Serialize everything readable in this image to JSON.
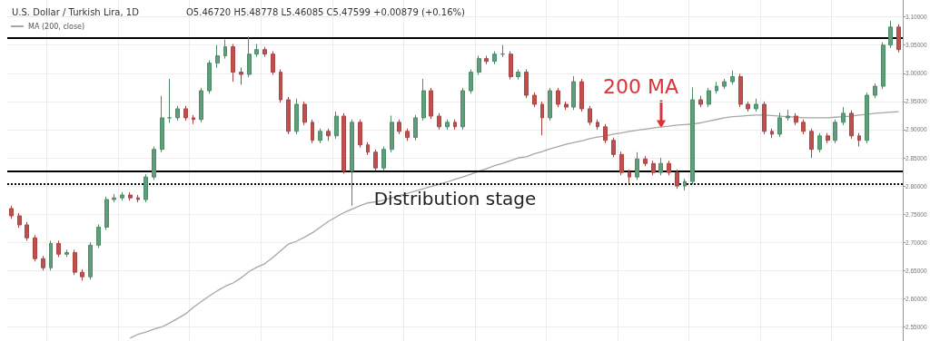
{
  "chart_data": {
    "type": "candlestick",
    "title": "U.S. Dollar / Turkish Lira, 1D",
    "subtitle": "O5.46720 H5.48778 L5.46085 C5.47599 +0.00879 (+0.16%)",
    "categories": [
      null,
      null,
      null,
      null,
      null,
      null,
      null,
      null,
      null,
      null,
      null,
      null,
      null,
      null,
      null,
      null,
      null,
      null,
      null,
      null,
      null,
      null,
      null,
      null,
      null,
      null,
      null,
      null,
      null,
      null,
      null,
      null,
      null,
      null,
      null,
      null,
      null,
      null,
      null,
      null,
      null,
      null,
      null,
      null,
      null,
      null,
      null,
      null,
      null,
      null,
      null,
      null,
      null,
      null,
      null,
      null,
      null,
      null,
      null,
      null,
      null,
      null,
      null,
      null,
      null,
      null,
      null,
      null,
      null,
      null,
      null,
      null,
      null,
      null,
      null,
      null,
      null,
      null,
      null,
      null,
      null,
      null,
      null,
      null,
      null,
      null,
      null,
      null,
      null,
      null,
      null,
      null,
      null,
      null,
      null,
      null,
      null,
      null,
      null,
      null,
      null,
      null,
      null,
      null,
      null,
      null,
      null,
      null,
      null,
      null,
      null,
      null,
      null
    ],
    "ohlc": [
      [
        2.76,
        2.765,
        2.742,
        2.747
      ],
      [
        2.747,
        2.752,
        2.726,
        2.731
      ],
      [
        2.731,
        2.736,
        2.703,
        2.708
      ],
      [
        2.708,
        2.713,
        2.666,
        2.671
      ],
      [
        2.671,
        2.676,
        2.65,
        2.655
      ],
      [
        2.655,
        2.703,
        2.65,
        2.698
      ],
      [
        2.698,
        2.703,
        2.674,
        2.679
      ],
      [
        2.679,
        2.687,
        2.674,
        2.682
      ],
      [
        2.682,
        2.687,
        2.642,
        2.647
      ],
      [
        2.647,
        2.652,
        2.632,
        2.639
      ],
      [
        2.639,
        2.7,
        2.634,
        2.695
      ],
      [
        2.695,
        2.732,
        2.69,
        2.727
      ],
      [
        2.727,
        2.781,
        2.722,
        2.776
      ],
      [
        2.776,
        2.786,
        2.771,
        2.779
      ],
      [
        2.779,
        2.789,
        2.774,
        2.784
      ],
      [
        2.784,
        2.789,
        2.774,
        2.779
      ],
      [
        2.779,
        2.784,
        2.771,
        2.776
      ],
      [
        2.776,
        2.821,
        2.771,
        2.816
      ],
      [
        2.816,
        2.87,
        2.811,
        2.865
      ],
      [
        2.865,
        2.96,
        2.86,
        2.921
      ],
      [
        2.921,
        2.99,
        2.912,
        2.921
      ],
      [
        2.921,
        2.942,
        2.916,
        2.937
      ],
      [
        2.937,
        2.942,
        2.916,
        2.921
      ],
      [
        2.921,
        2.926,
        2.91,
        2.918
      ],
      [
        2.918,
        2.974,
        2.913,
        2.969
      ],
      [
        2.969,
        3.023,
        2.964,
        3.018
      ],
      [
        3.018,
        3.05,
        3.01,
        3.031
      ],
      [
        3.031,
        3.06,
        3.026,
        3.047
      ],
      [
        3.047,
        3.052,
        2.985,
        3.002
      ],
      [
        3.002,
        3.01,
        2.98,
        2.998
      ],
      [
        2.998,
        3.065,
        2.993,
        3.034
      ],
      [
        3.034,
        3.052,
        3.029,
        3.042
      ],
      [
        3.042,
        3.047,
        3.029,
        3.034
      ],
      [
        3.034,
        3.039,
        2.997,
        3.002
      ],
      [
        3.002,
        3.007,
        2.948,
        2.953
      ],
      [
        2.953,
        2.958,
        2.892,
        2.897
      ],
      [
        2.897,
        2.955,
        2.892,
        2.945
      ],
      [
        2.945,
        2.95,
        2.908,
        2.913
      ],
      [
        2.913,
        2.918,
        2.876,
        2.881
      ],
      [
        2.881,
        2.902,
        2.876,
        2.897
      ],
      [
        2.897,
        2.902,
        2.88,
        2.889
      ],
      [
        2.889,
        2.932,
        2.884,
        2.924
      ],
      [
        2.924,
        2.929,
        2.822,
        2.827
      ],
      [
        2.827,
        2.918,
        2.765,
        2.913
      ],
      [
        2.913,
        2.918,
        2.868,
        2.873
      ],
      [
        2.873,
        2.878,
        2.855,
        2.86
      ],
      [
        2.86,
        2.865,
        2.827,
        2.832
      ],
      [
        2.832,
        2.87,
        2.827,
        2.865
      ],
      [
        2.865,
        2.925,
        2.86,
        2.913
      ],
      [
        2.913,
        2.918,
        2.892,
        2.897
      ],
      [
        2.897,
        2.902,
        2.88,
        2.886
      ],
      [
        2.886,
        2.926,
        2.881,
        2.921
      ],
      [
        2.921,
        2.99,
        2.916,
        2.969
      ],
      [
        2.969,
        2.974,
        2.919,
        2.924
      ],
      [
        2.924,
        2.929,
        2.9,
        2.905
      ],
      [
        2.905,
        2.918,
        2.9,
        2.913
      ],
      [
        2.913,
        2.918,
        2.9,
        2.905
      ],
      [
        2.905,
        2.974,
        2.9,
        2.969
      ],
      [
        2.969,
        3.007,
        2.964,
        3.002
      ],
      [
        3.002,
        3.031,
        2.997,
        3.026
      ],
      [
        3.026,
        3.031,
        3.016,
        3.021
      ],
      [
        3.021,
        3.039,
        3.016,
        3.034
      ],
      [
        3.034,
        3.05,
        3.029,
        3.034
      ],
      [
        3.034,
        3.039,
        2.989,
        2.994
      ],
      [
        2.994,
        3.007,
        2.989,
        3.002
      ],
      [
        3.002,
        3.007,
        2.956,
        2.961
      ],
      [
        2.961,
        2.966,
        2.94,
        2.945
      ],
      [
        2.945,
        2.95,
        2.89,
        2.921
      ],
      [
        2.921,
        2.974,
        2.916,
        2.969
      ],
      [
        2.969,
        2.974,
        2.94,
        2.945
      ],
      [
        2.945,
        2.95,
        2.935,
        2.94
      ],
      [
        2.94,
        2.995,
        2.935,
        2.985
      ],
      [
        2.985,
        2.99,
        2.932,
        2.937
      ],
      [
        2.937,
        2.942,
        2.908,
        2.913
      ],
      [
        2.913,
        2.918,
        2.9,
        2.905
      ],
      [
        2.905,
        2.91,
        2.876,
        2.881
      ],
      [
        2.881,
        2.886,
        2.851,
        2.856
      ],
      [
        2.856,
        2.861,
        2.819,
        2.824
      ],
      [
        2.824,
        2.829,
        2.805,
        2.816
      ],
      [
        2.816,
        2.86,
        2.811,
        2.848
      ],
      [
        2.848,
        2.853,
        2.835,
        2.84
      ],
      [
        2.84,
        2.845,
        2.819,
        2.824
      ],
      [
        2.824,
        2.85,
        2.819,
        2.84
      ],
      [
        2.84,
        2.845,
        2.819,
        2.824
      ],
      [
        2.824,
        2.829,
        2.795,
        2.8
      ],
      [
        2.8,
        2.813,
        2.792,
        2.808
      ],
      [
        2.808,
        2.975,
        2.803,
        2.953
      ],
      [
        2.953,
        2.96,
        2.94,
        2.945
      ],
      [
        2.945,
        2.974,
        2.94,
        2.969
      ],
      [
        2.969,
        2.985,
        2.964,
        2.977
      ],
      [
        2.977,
        2.99,
        2.972,
        2.985
      ],
      [
        2.985,
        3.005,
        2.98,
        2.994
      ],
      [
        2.994,
        2.999,
        2.94,
        2.945
      ],
      [
        2.945,
        2.95,
        2.932,
        2.937
      ],
      [
        2.937,
        2.955,
        2.932,
        2.945
      ],
      [
        2.945,
        2.95,
        2.892,
        2.897
      ],
      [
        2.897,
        2.902,
        2.885,
        2.892
      ],
      [
        2.892,
        2.93,
        2.887,
        2.921
      ],
      [
        2.921,
        2.935,
        2.916,
        2.924
      ],
      [
        2.924,
        2.929,
        2.908,
        2.913
      ],
      [
        2.913,
        2.918,
        2.892,
        2.897
      ],
      [
        2.897,
        2.902,
        2.85,
        2.865
      ],
      [
        2.865,
        2.894,
        2.86,
        2.889
      ],
      [
        2.889,
        2.894,
        2.876,
        2.881
      ],
      [
        2.881,
        2.918,
        2.876,
        2.913
      ],
      [
        2.913,
        2.94,
        2.908,
        2.929
      ],
      [
        2.929,
        2.934,
        2.884,
        2.889
      ],
      [
        2.889,
        2.894,
        2.87,
        2.881
      ],
      [
        2.881,
        2.966,
        2.876,
        2.961
      ],
      [
        2.961,
        2.982,
        2.956,
        2.977
      ],
      [
        2.977,
        3.055,
        2.972,
        3.05
      ],
      [
        3.05,
        3.093,
        3.045,
        3.082
      ],
      [
        3.082,
        3.087,
        3.037,
        3.042
      ]
    ],
    "series": [
      {
        "name": "MA (200, close)",
        "type": "line",
        "color": "#a6a6a6",
        "values": [
          null,
          null,
          null,
          null,
          null,
          null,
          null,
          null,
          null,
          null,
          null,
          null,
          null,
          null,
          null,
          2.53,
          2.537,
          2.541,
          2.546,
          2.55,
          2.557,
          2.565,
          2.573,
          2.585,
          2.595,
          2.605,
          2.614,
          2.622,
          2.628,
          2.637,
          2.648,
          2.656,
          2.662,
          2.673,
          2.685,
          2.697,
          2.702,
          2.709,
          2.717,
          2.727,
          2.737,
          2.745,
          2.753,
          2.759,
          2.765,
          2.77,
          2.772,
          2.775,
          2.779,
          2.783,
          2.787,
          2.791,
          2.795,
          2.799,
          2.803,
          2.807,
          2.812,
          2.816,
          2.821,
          2.826,
          2.831,
          2.836,
          2.84,
          2.845,
          2.85,
          2.852,
          2.857,
          2.861,
          2.866,
          2.87,
          2.874,
          2.877,
          2.88,
          2.884,
          2.887,
          2.889,
          2.892,
          2.894,
          2.897,
          2.899,
          2.901,
          2.903,
          2.905,
          2.906,
          2.908,
          2.909,
          2.91,
          2.912,
          2.915,
          2.918,
          2.921,
          2.923,
          2.924,
          2.925,
          2.926,
          2.926,
          2.925,
          2.924,
          2.923,
          2.922,
          2.921,
          2.921,
          2.921,
          2.921,
          2.922,
          2.923,
          2.924,
          2.926,
          2.927,
          2.929,
          2.93,
          2.931,
          2.932
        ]
      }
    ],
    "ylim": [
      2.525,
      3.13
    ],
    "yticks": [
      {
        "value": 2.55,
        "label": "2.55000"
      },
      {
        "value": 2.6,
        "label": "2.60000"
      },
      {
        "value": 2.65,
        "label": "2.65000"
      },
      {
        "value": 2.7,
        "label": "2.70000"
      },
      {
        "value": 2.75,
        "label": "2.75000"
      },
      {
        "value": 2.8,
        "label": "2.80000"
      },
      {
        "value": 2.85,
        "label": "2.85000"
      },
      {
        "value": 2.9,
        "label": "2.90000"
      },
      {
        "value": 2.95,
        "label": "2.95000"
      },
      {
        "value": 3.0,
        "label": "3.00000"
      },
      {
        "value": 3.05,
        "label": "3.05000"
      },
      {
        "value": 3.1,
        "label": "3.10000"
      }
    ],
    "grid": true,
    "legend": "top left",
    "marker": "none",
    "ref_lines": [
      {
        "axis": "y",
        "value": 3.063,
        "color": "#000000",
        "line_style": "solid"
      },
      {
        "axis": "y",
        "value": 2.826,
        "color": "#000000",
        "line_style": "solid"
      },
      {
        "axis": "y",
        "value": 2.803,
        "label": "Distribution stage",
        "color": "#000000",
        "line_style": "dotted"
      }
    ],
    "annotations": [
      "200 MA"
    ]
  }
}
